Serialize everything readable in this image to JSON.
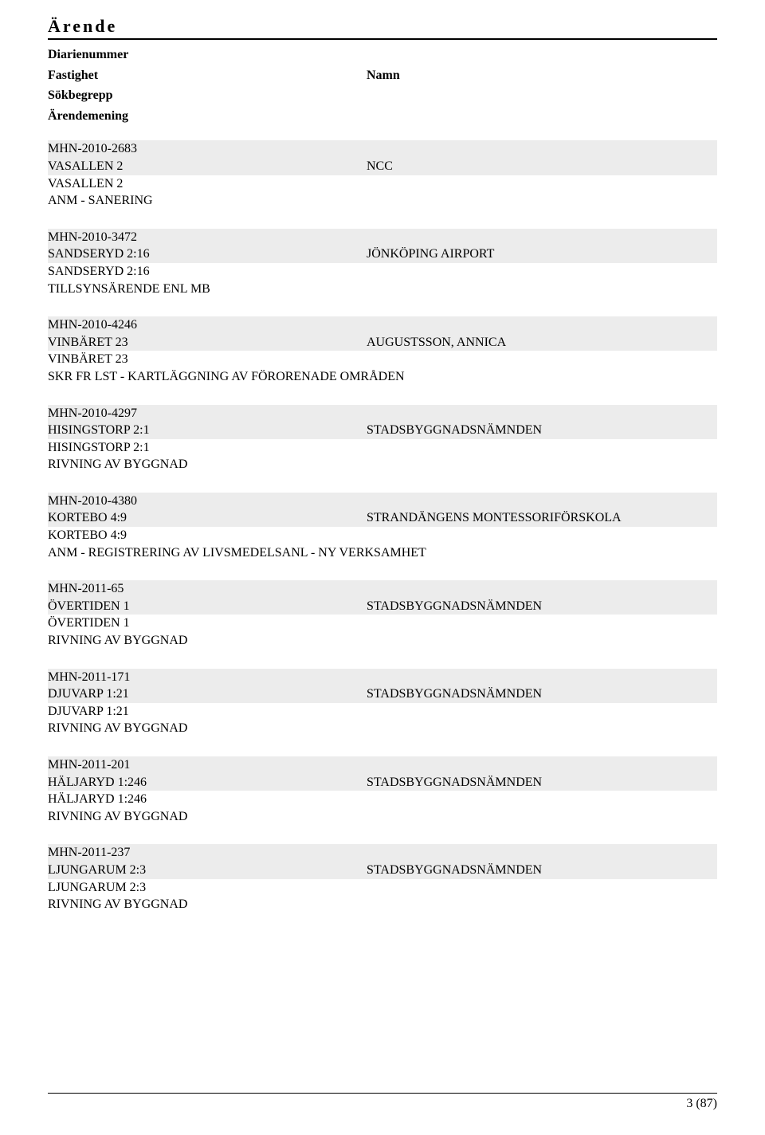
{
  "page": {
    "title": "Ärende",
    "meta_left": [
      "Diarienummer",
      "Fastighet",
      "Sökbegrepp",
      "Ärendemening"
    ],
    "meta_right": "Namn",
    "footer": "3 (87)"
  },
  "entries": [
    {
      "id": "MHN-2010-2683",
      "fastighet": "VASALLEN 2",
      "namn": "NCC",
      "sok": "VASALLEN 2",
      "mening": "ANM - SANERING"
    },
    {
      "id": "MHN-2010-3472",
      "fastighet": "SANDSERYD 2:16",
      "namn": "JÖNKÖPING AIRPORT",
      "sok": "SANDSERYD 2:16",
      "mening": "TILLSYNSÄRENDE ENL MB"
    },
    {
      "id": "MHN-2010-4246",
      "fastighet": "VINBÄRET 23",
      "namn": "AUGUSTSSON, ANNICA",
      "sok": "VINBÄRET 23",
      "mening": "SKR FR LST - KARTLÄGGNING AV FÖRORENADE OMRÅDEN"
    },
    {
      "id": "MHN-2010-4297",
      "fastighet": "HISINGSTORP 2:1",
      "namn": "STADSBYGGNADSNÄMNDEN",
      "sok": "HISINGSTORP 2:1",
      "mening": "RIVNING AV BYGGNAD"
    },
    {
      "id": "MHN-2010-4380",
      "fastighet": "KORTEBO 4:9",
      "namn": "STRANDÄNGENS MONTESSORIFÖRSKOLA",
      "sok": "KORTEBO 4:9",
      "mening": "ANM - REGISTRERING AV LIVSMEDELSANL - NY VERKSAMHET"
    },
    {
      "id": "MHN-2011-65",
      "fastighet": "ÖVERTIDEN 1",
      "namn": "STADSBYGGNADSNÄMNDEN",
      "sok": "ÖVERTIDEN 1",
      "mening": "RIVNING AV BYGGNAD"
    },
    {
      "id": "MHN-2011-171",
      "fastighet": "DJUVARP 1:21",
      "namn": "STADSBYGGNADSNÄMNDEN",
      "sok": "DJUVARP 1:21",
      "mening": "RIVNING AV BYGGNAD"
    },
    {
      "id": "MHN-2011-201",
      "fastighet": "HÄLJARYD 1:246",
      "namn": "STADSBYGGNADSNÄMNDEN",
      "sok": "HÄLJARYD 1:246",
      "mening": "RIVNING AV BYGGNAD"
    },
    {
      "id": "MHN-2011-237",
      "fastighet": "LJUNGARUM 2:3",
      "namn": "STADSBYGGNADSNÄMNDEN",
      "sok": "LJUNGARUM 2:3",
      "mening": "RIVNING AV BYGGNAD"
    }
  ]
}
